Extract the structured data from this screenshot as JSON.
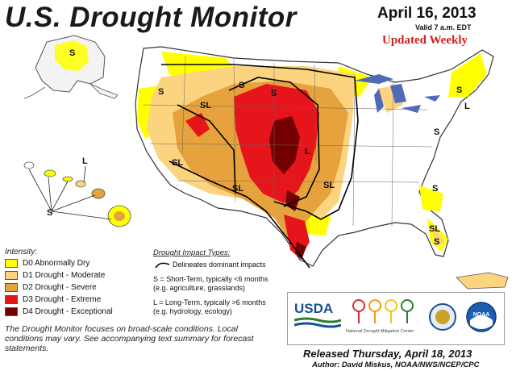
{
  "header": {
    "title": "U.S. Drought Monitor",
    "date": "April 16, 2013",
    "valid": "Valid 7 a.m. EDT",
    "updated": "Updated Weekly"
  },
  "map_labels": [
    "S",
    "SL",
    "S",
    "S",
    "SL",
    "SL",
    "SL",
    "L",
    "S",
    "S",
    "S",
    "S",
    "L",
    "SL",
    "S",
    "S",
    "L"
  ],
  "legend": {
    "title": "Intensity:",
    "items": [
      {
        "label": "D0 Abnormally Dry",
        "color": "#ffff00"
      },
      {
        "label": "D1 Drought - Moderate",
        "color": "#fcd37f"
      },
      {
        "label": "D2 Drought - Severe",
        "color": "#e6a23c"
      },
      {
        "label": "D3 Drought - Extreme",
        "color": "#e6141b"
      },
      {
        "label": "D4 Drought - Exceptional",
        "color": "#730000"
      }
    ]
  },
  "impact": {
    "title": "Drought Impact Types:",
    "delineates": "Delineates dominant impacts",
    "short_1": "S = Short-Term, typically <6 months",
    "short_2": "(e.g. agriculture, grasslands)",
    "long_1": "L = Long-Term, typically >6 months",
    "long_2": "(e.g. hydrology, ecology)"
  },
  "note": "The Drought Monitor focuses on broad-scale conditions. Local conditions may vary. See accompanying text summary for forecast statements.",
  "logos": {
    "usda": "USDA",
    "ndmc": "National Drought Mitigation Center",
    "noaa": "NOAA"
  },
  "footer": {
    "released": "Released Thursday, April 18, 2013",
    "author": "Author: David Miskus, NOAA/NWS/NCEP/CPC"
  }
}
